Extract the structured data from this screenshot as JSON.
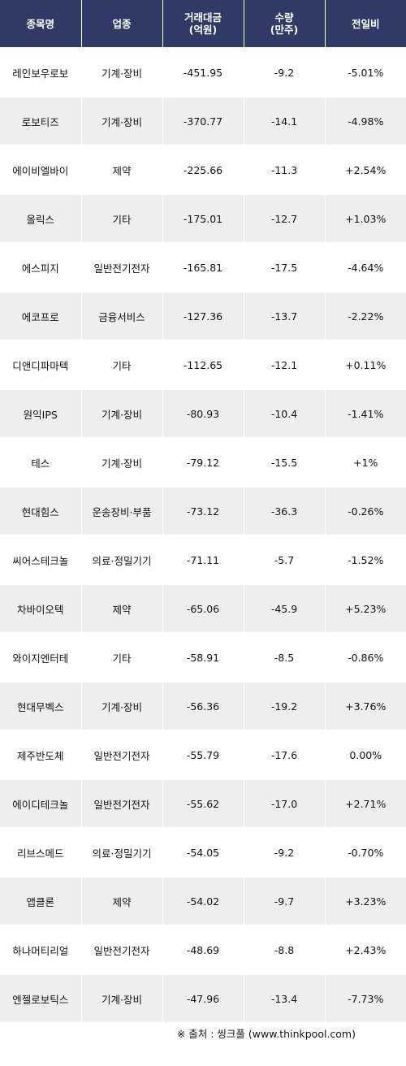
{
  "header": {
    "name": "종목명",
    "sector": "업종",
    "amount": "거래대금\n(억원)",
    "volume": "수량\n(만주)",
    "change": "전일비"
  },
  "rows": [
    {
      "name": "레인보우로보",
      "sector": "기계·장비",
      "amount": "-451.95",
      "volume": "-9.2",
      "change": "-5.01%",
      "dir": "down"
    },
    {
      "name": "로보티즈",
      "sector": "기계·장비",
      "amount": "-370.77",
      "volume": "-14.1",
      "change": "-4.98%",
      "dir": "down"
    },
    {
      "name": "에이비엘바이",
      "sector": "제약",
      "amount": "-225.66",
      "volume": "-11.3",
      "change": "+2.54%",
      "dir": "up"
    },
    {
      "name": "올릭스",
      "sector": "기타",
      "amount": "-175.01",
      "volume": "-12.7",
      "change": "+1.03%",
      "dir": "up"
    },
    {
      "name": "에스피지",
      "sector": "일반전기전자",
      "amount": "-165.81",
      "volume": "-17.5",
      "change": "-4.64%",
      "dir": "down"
    },
    {
      "name": "에코프로",
      "sector": "금융서비스",
      "amount": "-127.36",
      "volume": "-13.7",
      "change": "-2.22%",
      "dir": "down"
    },
    {
      "name": "디앤디파마텍",
      "sector": "기타",
      "amount": "-112.65",
      "volume": "-12.1",
      "change": "+0.11%",
      "dir": "up"
    },
    {
      "name": "원익IPS",
      "sector": "기계·장비",
      "amount": "-80.93",
      "volume": "-10.4",
      "change": "-1.41%",
      "dir": "down"
    },
    {
      "name": "테스",
      "sector": "기계·장비",
      "amount": "-79.12",
      "volume": "-15.5",
      "change": "+1%",
      "dir": "up"
    },
    {
      "name": "현대힘스",
      "sector": "운송장비·부품",
      "amount": "-73.12",
      "volume": "-36.3",
      "change": "-0.26%",
      "dir": "down"
    },
    {
      "name": "씨어스테크놀",
      "sector": "의료·정밀기기",
      "amount": "-71.11",
      "volume": "-5.7",
      "change": "-1.52%",
      "dir": "down"
    },
    {
      "name": "차바이오텍",
      "sector": "제약",
      "amount": "-65.06",
      "volume": "-45.9",
      "change": "+5.23%",
      "dir": "up"
    },
    {
      "name": "와이지엔터테",
      "sector": "기타",
      "amount": "-58.91",
      "volume": "-8.5",
      "change": "-0.86%",
      "dir": "down"
    },
    {
      "name": "현대무벡스",
      "sector": "기계·장비",
      "amount": "-56.36",
      "volume": "-19.2",
      "change": "+3.76%",
      "dir": "up"
    },
    {
      "name": "제주반도체",
      "sector": "일반전기전자",
      "amount": "-55.79",
      "volume": "-17.6",
      "change": "0.00%",
      "dir": "flat"
    },
    {
      "name": "에이디테크놀",
      "sector": "일반전기전자",
      "amount": "-55.62",
      "volume": "-17.0",
      "change": "+2.71%",
      "dir": "up"
    },
    {
      "name": "리브스메드",
      "sector": "의료·정밀기기",
      "amount": "-54.05",
      "volume": "-9.2",
      "change": "-0.70%",
      "dir": "down"
    },
    {
      "name": "앱클론",
      "sector": "제약",
      "amount": "-54.02",
      "volume": "-9.7",
      "change": "+3.23%",
      "dir": "up"
    },
    {
      "name": "하나머티리얼",
      "sector": "일반전기전자",
      "amount": "-48.69",
      "volume": "-8.8",
      "change": "+2.43%",
      "dir": "up"
    },
    {
      "name": "엔젤로보틱스",
      "sector": "기계·장비",
      "amount": "-47.96",
      "volume": "-13.4",
      "change": "-7.73%",
      "dir": "down"
    }
  ],
  "source": "※ 출처 : 씽크풀 (www.thinkpool.com)",
  "colors": {
    "header_bg": "#2f3a66",
    "up": "#dd1111",
    "down": "#2222aa",
    "row_alt": "#eeeeee"
  }
}
